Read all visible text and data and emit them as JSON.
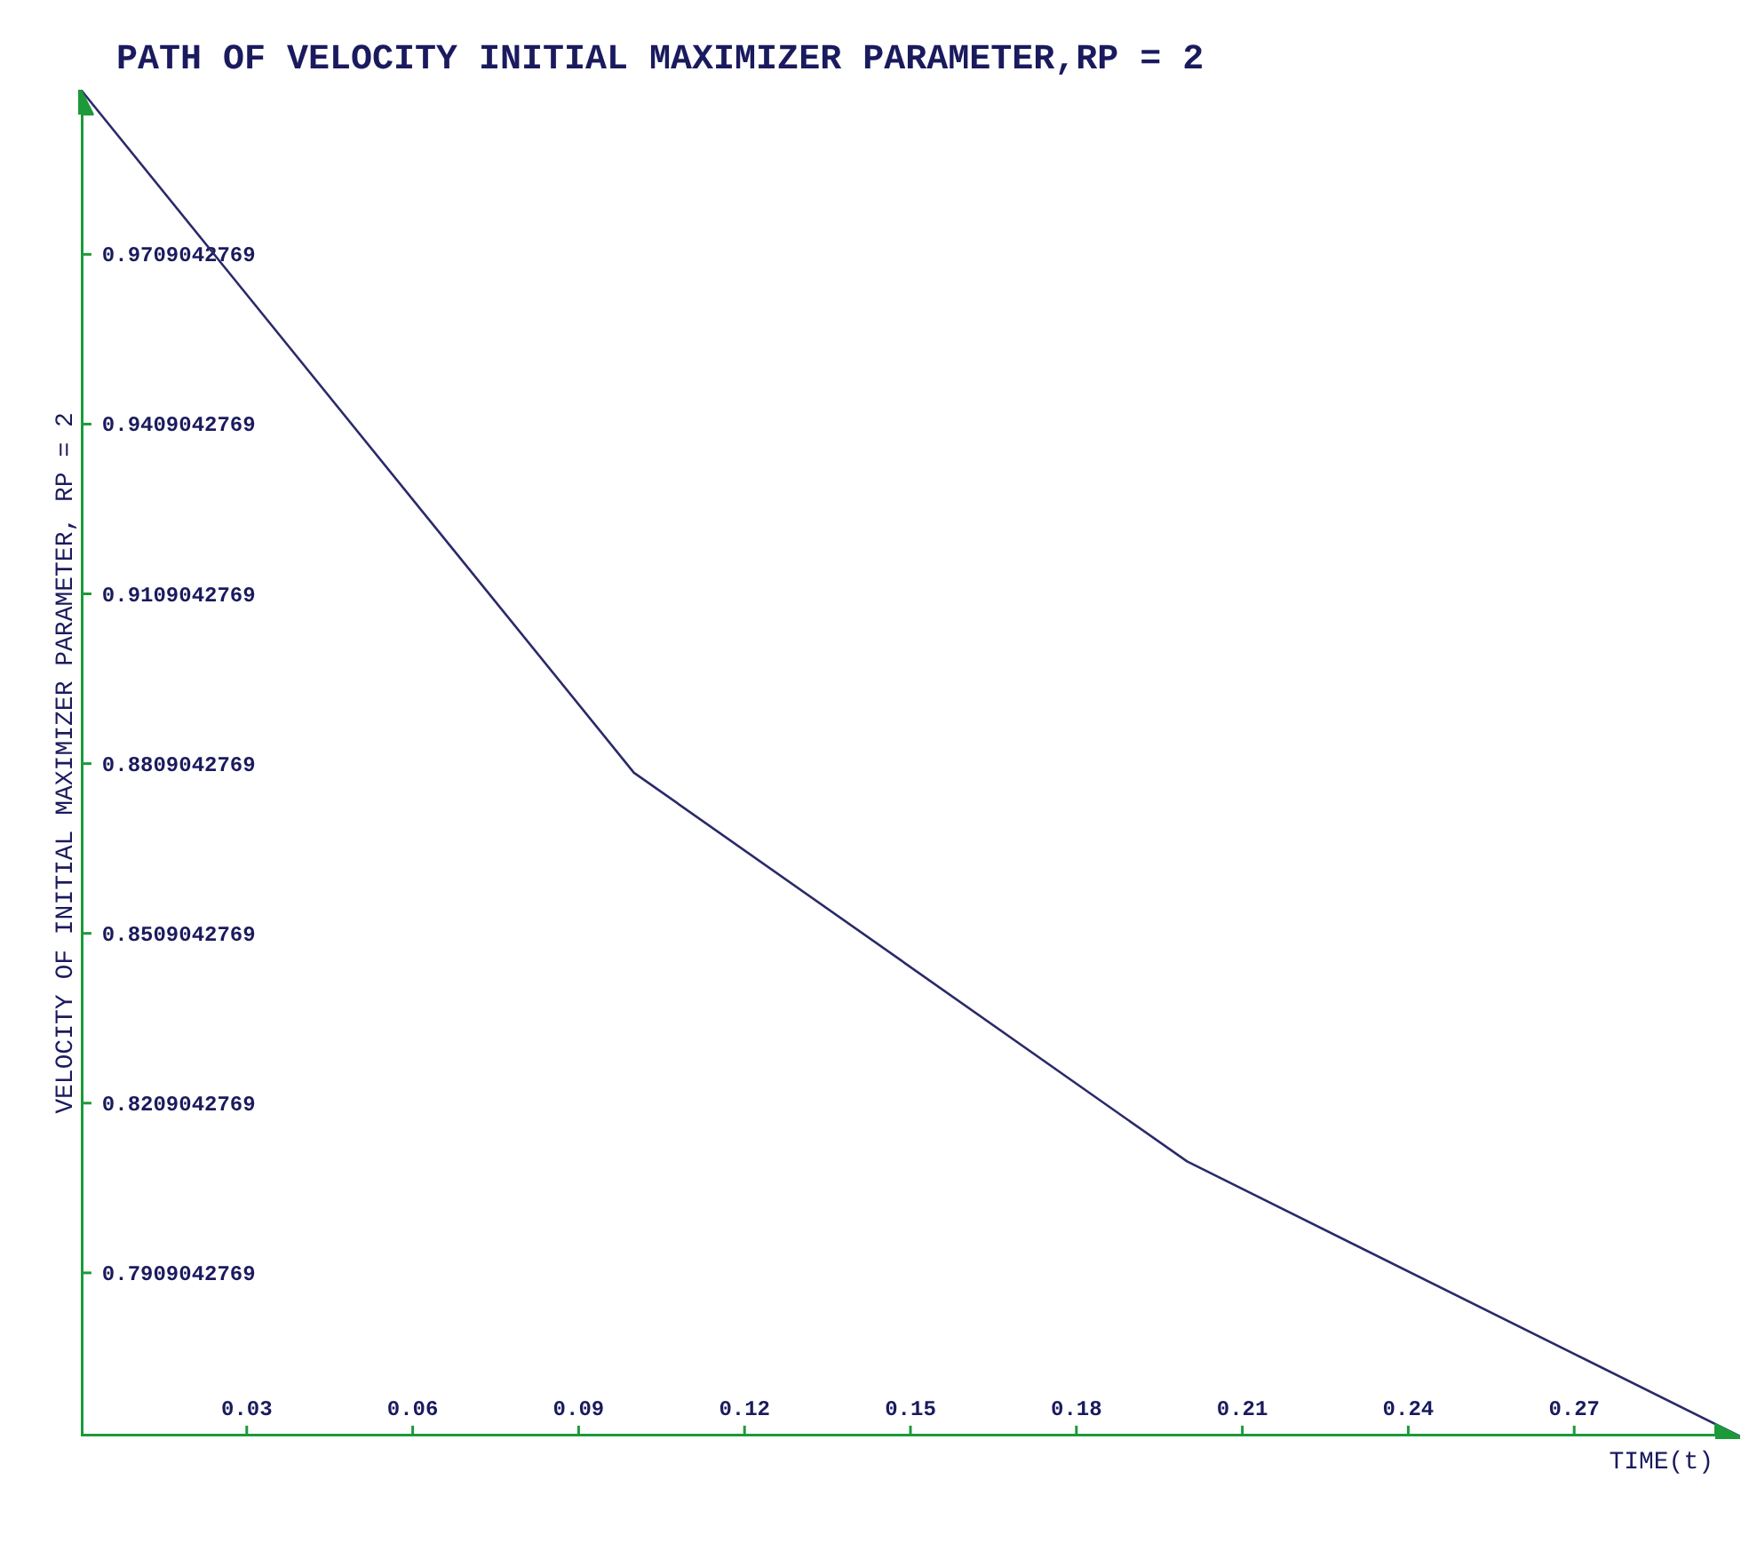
{
  "chart_data": {
    "type": "line",
    "title": "PATH OF VELOCITY  INITIAL MAXIMIZER PARAMETER,RP = 2",
    "xlabel": "TIME(t)",
    "ylabel": "VELOCITY OF INITIAL MAXIMIZER PARAMETER, RP = 2",
    "x": [
      0,
      0.1,
      0.2,
      0.3
    ],
    "series": [
      {
        "color": "#2a2a6a",
        "values": [
          1.0,
          0.8793,
          0.8106,
          0.762
        ]
      }
    ],
    "xlim": [
      0,
      0.3
    ],
    "ylim": [
      0.762,
      1.0
    ],
    "xticks": [
      0.03,
      0.06,
      0.09,
      0.12,
      0.15,
      0.18,
      0.21,
      0.24,
      0.27
    ],
    "yticks": [
      0.7909042769,
      0.8209042769,
      0.8509042769,
      0.8809042769,
      0.9109042769,
      0.9409042769,
      0.9709042769
    ]
  }
}
